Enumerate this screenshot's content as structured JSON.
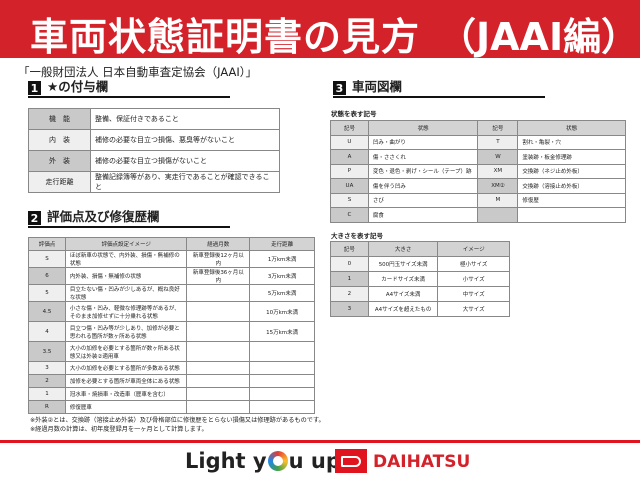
{
  "header": {
    "title": "車両状態証明書の見方",
    "title_suffix": "（JAAI編）",
    "subtitle": "「一般財団法人 日本自動車査定協会（JAAI）」"
  },
  "section1": {
    "num": "1",
    "title": "★の付与欄",
    "rows": [
      {
        "label": "機　能",
        "text": "整備、保証付きであること"
      },
      {
        "label": "内　装",
        "text": "補修の必要な目立つ損傷、悪臭等がないこと"
      },
      {
        "label": "外　装",
        "text": "補修の必要な目立つ損傷がないこと"
      },
      {
        "label": "走行距離",
        "text": "整備記録簿等があり、実走行であることが確認できること"
      }
    ]
  },
  "section2": {
    "num": "2",
    "title": "評価点及び修復歴欄",
    "headers": [
      "評価点",
      "評価点設定イメージ",
      "経過月数",
      "走行距離"
    ],
    "rows": [
      [
        "S",
        "ほぼ新車の状態で、内外装、損傷・無補修の状態",
        "新車登録後12ヶ月以内",
        "1万km未満"
      ],
      [
        "6",
        "内外装、損傷・無補修の状態",
        "新車登録後36ヶ月以内",
        "3万km未満"
      ],
      [
        "5",
        "目立たない傷・凹みが少しあるが、概ね良好な状態",
        "",
        "5万km未満"
      ],
      [
        "4.5",
        "小さな傷・凹み、軽微な修理跡等があるが、そのまま加修せずに十分乗れる状態",
        "",
        "10万km未満"
      ],
      [
        "4",
        "目立つ傷・凹み等が少しあり、加修が必要と思われる箇所が数ヶ所ある状態",
        "",
        "15万km未満"
      ],
      [
        "3.5",
        "大小の加修を必要とする箇所が数ヶ所ある状態又は外装②適用車",
        "",
        ""
      ],
      [
        "3",
        "大小の加修を必要とする箇所が多数ある状態",
        "",
        ""
      ],
      [
        "2",
        "加修を必要とする箇所が車両全体にある状態",
        "",
        ""
      ],
      [
        "1",
        "冠水車・焼損車・改造車（歴車を含む）",
        "",
        ""
      ],
      [
        "R",
        "修復歴車",
        "",
        ""
      ]
    ]
  },
  "section3": {
    "num": "3",
    "title": "車両図欄",
    "condition_label": "状態を表す記号",
    "condition_headers": [
      "記号",
      "状態",
      "記号",
      "状態"
    ],
    "condition_rows": [
      [
        "U",
        "凹み・曲がり",
        "T",
        "割れ・亀裂・穴"
      ],
      [
        "A",
        "傷・ささくれ",
        "W",
        "塗装跡・板金修理跡"
      ],
      [
        "P",
        "変色・退色・剥げ・シール（テープ）跡",
        "XM",
        "交換跡（ネジ止め外板）"
      ],
      [
        "UA",
        "傷を伴う凹み",
        "XM②",
        "交換跡（溶接止め外板）"
      ],
      [
        "S",
        "さび",
        "M",
        "修復歴"
      ],
      [
        "C",
        "腐食",
        "",
        ""
      ]
    ],
    "size_label": "大きさを表す記号",
    "size_headers": [
      "記号",
      "大きさ",
      "イメージ"
    ],
    "size_rows": [
      [
        "0",
        "500円玉サイズ未満",
        "極小サイズ"
      ],
      [
        "1",
        "カードサイズ未満",
        "小サイズ"
      ],
      [
        "2",
        "A4サイズ未満",
        "中サイズ"
      ],
      [
        "3",
        "A4サイズを超えたもの",
        "大サイズ"
      ]
    ]
  },
  "notes": [
    "※外装②とは、交換跡（溶接止め外装）及び骨格部位に修復歴をとらない損傷又は修理跡があるものです。",
    "※経過月数の計算は、初年度登録月を一ヶ月として計算します。"
  ],
  "footer": {
    "slogan_pre": "Light y",
    "slogan_post": "u up",
    "brand": "DAIHATSU",
    "brand_color": "#d3222a",
    "accent": "#e0141e"
  }
}
